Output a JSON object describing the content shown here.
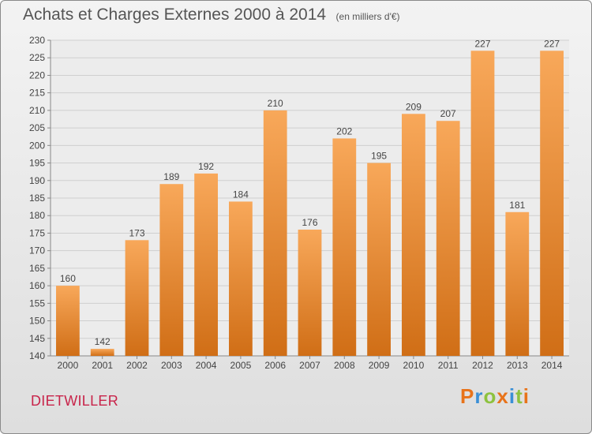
{
  "header": {
    "title": "Achats et Charges Externes 2000 à 2014",
    "unit": "(en milliers d'€)"
  },
  "footer": {
    "commune": "DIETWILLER",
    "brand_letters": [
      "P",
      "r",
      "o",
      "x",
      "i",
      "t",
      "i"
    ],
    "brand_colors": [
      "#e8731a",
      "#3a8fd6",
      "#8dc23f",
      "#e8731a",
      "#3a8fd6",
      "#8dc23f",
      "#e8731a"
    ]
  },
  "colors": {
    "bar_light": "#f8a85a",
    "bar_dark": "#d06e16",
    "grid": "#cfcfcf",
    "axis_text": "#444444"
  },
  "chart_data": {
    "type": "bar",
    "categories": [
      "2000",
      "2001",
      "2002",
      "2003",
      "2004",
      "2005",
      "2006",
      "2007",
      "2008",
      "2009",
      "2010",
      "2011",
      "2012",
      "2013",
      "2014"
    ],
    "values": [
      160,
      142,
      173,
      189,
      192,
      184,
      210,
      176,
      202,
      195,
      209,
      207,
      227,
      181,
      227
    ],
    "ylim": [
      140,
      230
    ],
    "yticks": [
      140,
      145,
      150,
      155,
      160,
      165,
      170,
      175,
      180,
      185,
      190,
      195,
      200,
      205,
      210,
      215,
      220,
      225,
      230
    ],
    "grid": true,
    "data_labels": true
  }
}
